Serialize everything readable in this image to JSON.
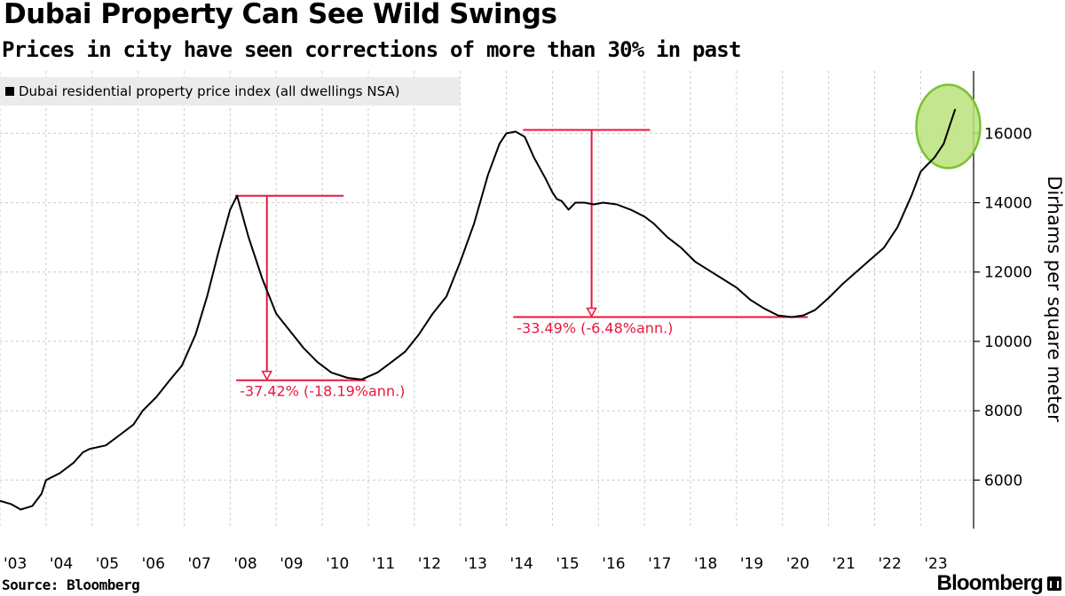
{
  "header": {
    "title": "Dubai Property Can See Wild Swings",
    "subtitle": "Prices in city have seen corrections of more than 30% in past"
  },
  "footer": {
    "source": "Source: Bloomberg",
    "brand": "Bloomberg"
  },
  "colors": {
    "line": "#000000",
    "annotation": "#e8173d",
    "highlight_fill": "#b9e27a",
    "highlight_stroke": "#7ac231",
    "grid": "#cccccc"
  },
  "chart_data": {
    "type": "line",
    "title": "Dubai Property Can See Wild Swings",
    "subtitle": "Prices in city have seen corrections of more than 30% in past",
    "ylabel": "Dirhams per square meter",
    "xlabel": "",
    "legend": {
      "entries": [
        "Dubai residential property price index (all dwellings NSA)"
      ],
      "placement": "top-left"
    },
    "grid": true,
    "y_axis_side": "right",
    "ylim": [
      4600,
      17800
    ],
    "xlim": [
      2003.0,
      2024.15
    ],
    "yticks": [
      6000,
      8000,
      10000,
      12000,
      14000,
      16000
    ],
    "ytick_labels": [
      "6000",
      "8000",
      "10000",
      "12000",
      "14000",
      "16000"
    ],
    "xticks": [
      2003,
      2004,
      2005,
      2006,
      2007,
      2008,
      2009,
      2010,
      2011,
      2012,
      2013,
      2014,
      2015,
      2016,
      2017,
      2018,
      2019,
      2020,
      2021,
      2022,
      2023
    ],
    "xtick_labels": [
      "'03",
      "'04",
      "'05",
      "'06",
      "'07",
      "'08",
      "'09",
      "'10",
      "'11",
      "'12",
      "'13",
      "'14",
      "'15",
      "'16",
      "'17",
      "'18",
      "'19",
      "'20",
      "'21",
      "'22",
      "'23"
    ],
    "series": [
      {
        "name": "Dubai residential property price index (all dwellings NSA)",
        "x": [
          2003.0,
          2003.25,
          2003.45,
          2003.7,
          2003.9,
          2004.0,
          2004.3,
          2004.6,
          2004.8,
          2004.95,
          2005.3,
          2005.6,
          2005.9,
          2006.1,
          2006.4,
          2006.7,
          2006.95,
          2007.25,
          2007.5,
          2007.75,
          2008.0,
          2008.15,
          2008.4,
          2008.7,
          2009.0,
          2009.3,
          2009.6,
          2009.9,
          2010.2,
          2010.55,
          2010.85,
          2011.2,
          2011.5,
          2011.8,
          2012.1,
          2012.4,
          2012.7,
          2013.0,
          2013.3,
          2013.6,
          2013.85,
          2014.0,
          2014.2,
          2014.4,
          2014.6,
          2014.85,
          2015.0,
          2015.1,
          2015.2,
          2015.35,
          2015.5,
          2015.7,
          2015.9,
          2016.1,
          2016.4,
          2016.7,
          2017.0,
          2017.2,
          2017.5,
          2017.8,
          2018.1,
          2018.4,
          2018.7,
          2019.0,
          2019.3,
          2019.6,
          2019.9,
          2020.2,
          2020.45,
          2020.7,
          2021.0,
          2021.3,
          2021.6,
          2021.9,
          2022.2,
          2022.5,
          2022.8,
          2023.0,
          2023.15,
          2023.3,
          2023.5,
          2023.65,
          2023.75
        ],
        "values": [
          5400,
          5300,
          5150,
          5250,
          5600,
          6000,
          6200,
          6500,
          6800,
          6900,
          7000,
          7300,
          7600,
          8000,
          8400,
          8900,
          9300,
          10200,
          11300,
          12600,
          13800,
          14200,
          13000,
          11800,
          10800,
          10300,
          9800,
          9400,
          9100,
          8950,
          8900,
          9100,
          9400,
          9700,
          10200,
          10800,
          11300,
          12300,
          13400,
          14800,
          15700,
          16000,
          16050,
          15900,
          15300,
          14700,
          14300,
          14100,
          14050,
          13800,
          14000,
          14000,
          13950,
          14000,
          13950,
          13800,
          13600,
          13400,
          13000,
          12700,
          12300,
          12050,
          11800,
          11550,
          11200,
          10950,
          10750,
          10700,
          10750,
          10900,
          11250,
          11650,
          12000,
          12350,
          12700,
          13300,
          14200,
          14900,
          15100,
          15300,
          15700,
          16300,
          16700
        ]
      }
    ],
    "annotations": [
      {
        "label": "-37.42% (-18.19%ann.)",
        "peak_x": 2008.15,
        "peak_value": 14200,
        "trough_x": 2010.85,
        "trough_value": 8880
      },
      {
        "label": "-33.49% (-6.48%ann.)",
        "peak_x": 2014.4,
        "peak_value": 16100,
        "trough_x": 2020.45,
        "trough_value": 10700
      }
    ],
    "highlight": {
      "shape": "ellipse",
      "x": 2023.6,
      "value": 16200
    }
  }
}
